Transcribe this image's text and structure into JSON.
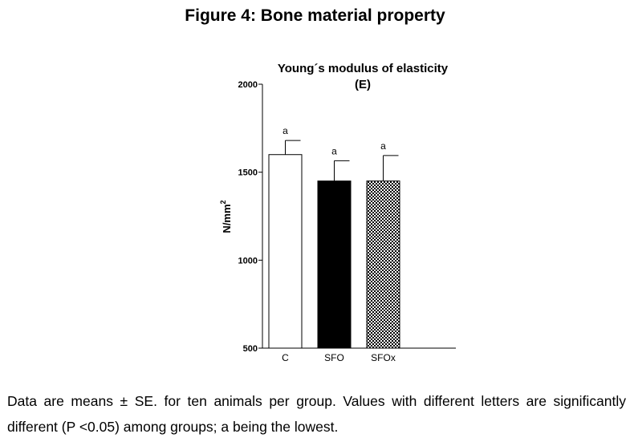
{
  "figure_title": "Figure 4: Bone material property",
  "caption": "Data are means ± SE. for ten animals per group. Values with different letters are significantly different (P <0.05) among groups; a being the lowest.",
  "chart_data": {
    "type": "bar",
    "title_line1": "Young´s modulus of elasticity",
    "title_line2": "(E)",
    "ylabel_text": "N/mm",
    "ylabel_sup": "2",
    "xlabel": "",
    "ylim": [
      500,
      2000
    ],
    "yticks": [
      500,
      1000,
      1500,
      2000
    ],
    "categories": [
      "C",
      "SFO",
      "SFOx"
    ],
    "values": [
      1600,
      1450,
      1450
    ],
    "errors": [
      80,
      115,
      145
    ],
    "significance_letters": [
      "a",
      "a",
      "a"
    ],
    "fills": [
      "white",
      "black",
      "checkered"
    ],
    "grid": false,
    "legend": "none"
  }
}
